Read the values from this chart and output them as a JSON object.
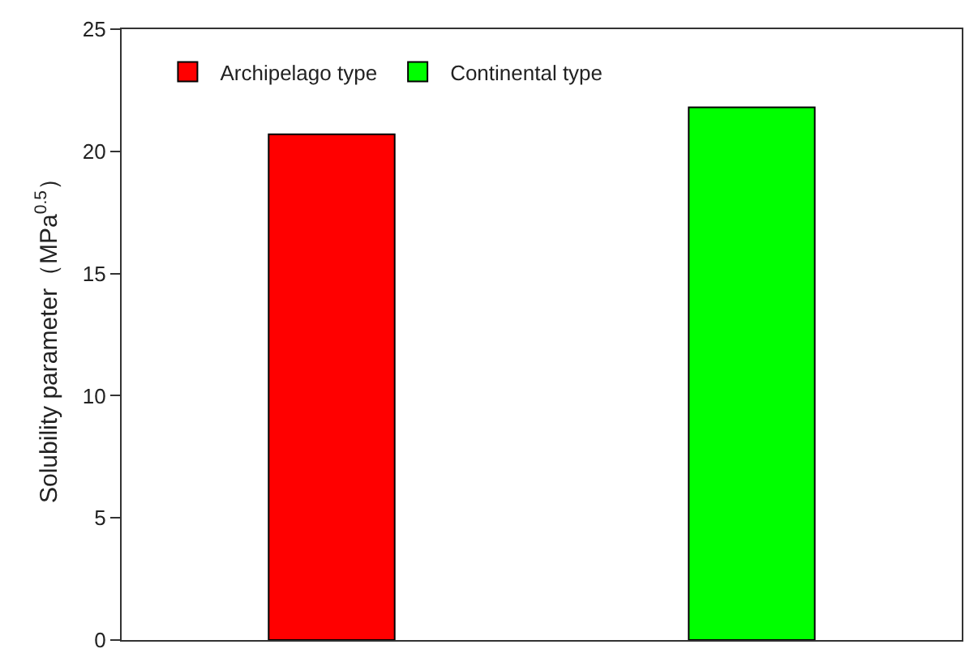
{
  "chart_data": {
    "type": "bar",
    "ylabel": "Solubility parameter（MPa$^{0.5}$）",
    "categories": [
      null,
      null
    ],
    "series": [
      {
        "name": "Archipelago type",
        "color": "#ff0000",
        "values": [
          20.7,
          null
        ]
      },
      {
        "name": "Continental type",
        "color": "#00ff00",
        "values": [
          null,
          21.8
        ]
      }
    ],
    "ylim": [
      0,
      25
    ],
    "yticks": [
      0,
      5,
      10,
      15,
      20,
      25
    ],
    "grid": false,
    "legend": "top left"
  }
}
